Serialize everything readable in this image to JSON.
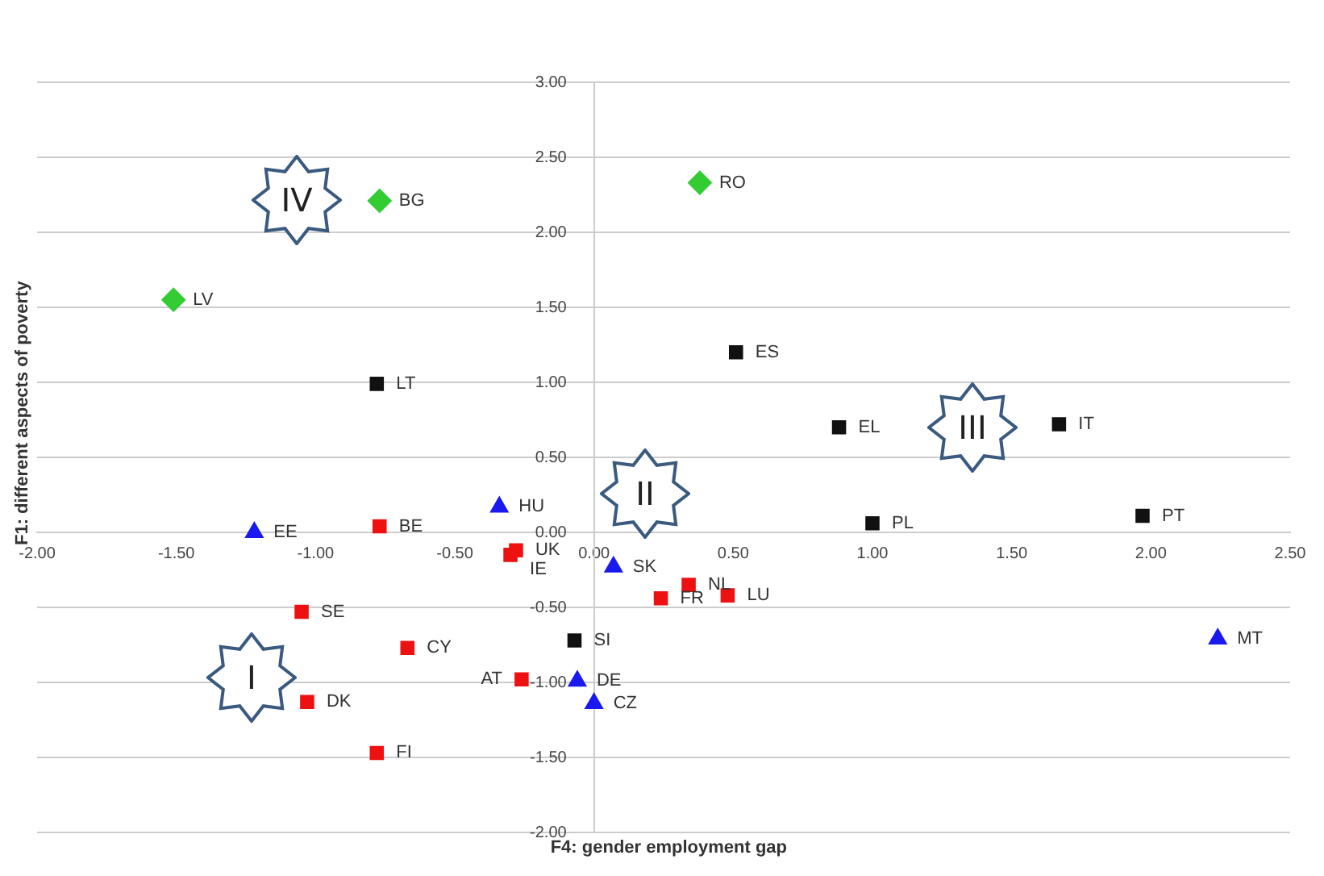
{
  "chart_data": {
    "type": "scatter",
    "xlabel": "F4: gender employment gap",
    "ylabel": "F1: different aspects of poverty",
    "xlim": [
      -2,
      2.5
    ],
    "xticks": [
      {
        "value": -2,
        "label": "-2.00"
      },
      {
        "value": -1.5,
        "label": "-1.50"
      },
      {
        "value": -1,
        "label": "-1.00"
      },
      {
        "value": -0.5,
        "label": "-0.50"
      },
      {
        "value": 0,
        "label": "0.00"
      },
      {
        "value": 0.5,
        "label": "0.50"
      },
      {
        "value": 1,
        "label": "1.00"
      },
      {
        "value": 1.5,
        "label": "1.50"
      },
      {
        "value": 2,
        "label": "2.00"
      },
      {
        "value": 2.5,
        "label": "2.50"
      }
    ],
    "ylim": [
      -2,
      3
    ],
    "yticks": [
      {
        "value": -2,
        "label": "-2.00"
      },
      {
        "value": -1.5,
        "label": "-1.50"
      },
      {
        "value": -1,
        "label": "-1.00"
      },
      {
        "value": -0.5,
        "label": "-0.50"
      },
      {
        "value": 0,
        "label": "0.00"
      },
      {
        "value": 0.5,
        "label": "0.50"
      },
      {
        "value": 1,
        "label": "1.00"
      },
      {
        "value": 1.5,
        "label": "1.50"
      },
      {
        "value": 2,
        "label": "2.00"
      },
      {
        "value": 2.5,
        "label": "2.50"
      },
      {
        "value": 3,
        "label": "3.00"
      }
    ],
    "grid": "y",
    "legend": false,
    "series": [
      {
        "color": "#33cc33",
        "marker": "diamond",
        "x": [
          -0.77,
          0.38,
          -1.51
        ],
        "values": [
          2.21,
          2.33,
          1.55
        ]
      },
      {
        "color": "#111111",
        "marker": "square",
        "x": [
          -0.78,
          0.51,
          0.88,
          1.67,
          1.0,
          1.97,
          -0.07
        ],
        "values": [
          0.99,
          1.2,
          0.7,
          0.72,
          0.06,
          0.11,
          -0.72
        ]
      },
      {
        "color": "#1a1aee",
        "marker": "triangle",
        "x": [
          -0.34,
          -1.22,
          0.07,
          -0.06,
          0.0,
          2.24
        ],
        "values": [
          0.17,
          0.0,
          -0.23,
          -0.99,
          -1.14,
          -0.71
        ]
      },
      {
        "color": "#ee1111",
        "marker": "square",
        "x": [
          -0.77,
          -0.3,
          -0.28,
          -1.05,
          0.34,
          0.24,
          0.48,
          -0.67,
          -0.26,
          -1.03,
          -0.78
        ],
        "values": [
          0.04,
          -0.15,
          -0.12,
          -0.53,
          -0.35,
          -0.44,
          -0.42,
          -0.77,
          -0.98,
          -1.13,
          -1.47
        ]
      }
    ],
    "annotations": [
      {
        "text": "BG",
        "x": -0.77,
        "y": 2.21
      },
      {
        "text": "RO",
        "x": 0.38,
        "y": 2.33
      },
      {
        "text": "LV",
        "x": -1.51,
        "y": 1.55
      },
      {
        "text": "LT",
        "x": -0.78,
        "y": 0.99
      },
      {
        "text": "ES",
        "x": 0.51,
        "y": 1.2
      },
      {
        "text": "EL",
        "x": 0.88,
        "y": 0.7
      },
      {
        "text": "IT",
        "x": 1.67,
        "y": 0.72
      },
      {
        "text": "PL",
        "x": 1.0,
        "y": 0.06
      },
      {
        "text": "PT",
        "x": 1.97,
        "y": 0.11
      },
      {
        "text": "SI",
        "x": -0.07,
        "y": -0.72
      },
      {
        "text": "HU",
        "x": -0.34,
        "y": 0.17
      },
      {
        "text": "EE",
        "x": -1.22,
        "y": 0.0
      },
      {
        "text": "SK",
        "x": 0.07,
        "y": -0.23
      },
      {
        "text": "DE",
        "x": -0.06,
        "y": -0.99
      },
      {
        "text": "CZ",
        "x": 0.0,
        "y": -1.14
      },
      {
        "text": "MT",
        "x": 2.24,
        "y": -0.71
      },
      {
        "text": "BE",
        "x": -0.77,
        "y": 0.04
      },
      {
        "text": "UK",
        "x": -0.28,
        "y": -0.12
      },
      {
        "text": "IE",
        "x": -0.3,
        "y": -0.15
      },
      {
        "text": "SE",
        "x": -1.05,
        "y": -0.53
      },
      {
        "text": "NL",
        "x": 0.34,
        "y": -0.35
      },
      {
        "text": "FR",
        "x": 0.24,
        "y": -0.44
      },
      {
        "text": "LU",
        "x": 0.48,
        "y": -0.42
      },
      {
        "text": "CY",
        "x": -0.67,
        "y": -0.77
      },
      {
        "text": "AT",
        "x": -0.26,
        "y": -0.98
      },
      {
        "text": "DK",
        "x": -1.03,
        "y": -1.13
      },
      {
        "text": "FI",
        "x": -0.78,
        "y": -1.47
      },
      "IV",
      "II",
      "III",
      "I"
    ]
  }
}
